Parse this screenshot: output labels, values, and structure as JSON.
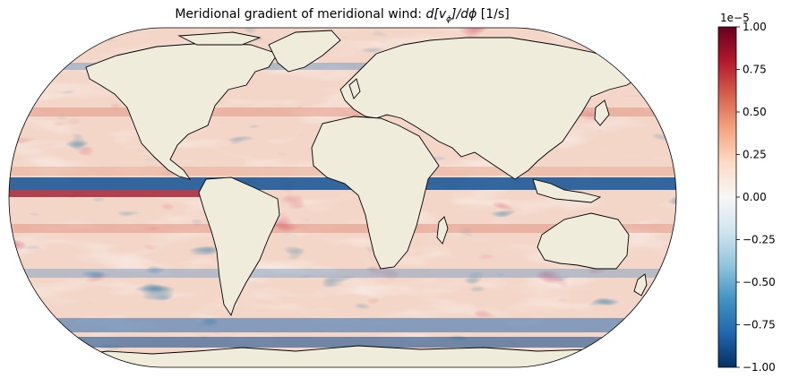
{
  "title": {
    "text_prefix": "Meridional gradient of meridional wind: ",
    "text_math": "d[v",
    "text_math_sub": "ϕ",
    "text_math_suffix": "]/dϕ",
    "text_units": " [1/s]"
  },
  "map": {
    "projection": "Robinson",
    "land_color": "#efecdc",
    "coastline_color": "#000000",
    "colormap": "RdBu_r",
    "colormap_stops": [
      "#053061",
      "#2166ac",
      "#4393c3",
      "#92c5de",
      "#d1e5f0",
      "#f7f7f7",
      "#fddbc7",
      "#f4a582",
      "#d6604d",
      "#b2182b",
      "#67001f"
    ]
  },
  "colorbar": {
    "multiplier": "1e−5",
    "vmin": -1.0,
    "vmax": 1.0,
    "ticks": [
      "1.00",
      "0.75",
      "0.50",
      "0.25",
      "0.00",
      "−0.25",
      "−0.50",
      "−0.75",
      "−1.00"
    ]
  }
}
